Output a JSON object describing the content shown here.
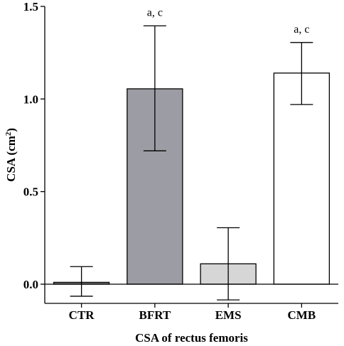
{
  "chart_data": {
    "type": "bar",
    "categories": [
      "CTR",
      "BFRT",
      "EMS",
      "CMB"
    ],
    "values": [
      0.01,
      1.055,
      0.11,
      1.14
    ],
    "error": [
      {
        "low": -0.065,
        "high": 0.095
      },
      {
        "low": 0.72,
        "high": 1.395
      },
      {
        "low": -0.085,
        "high": 0.305
      },
      {
        "low": 0.97,
        "high": 1.305
      }
    ],
    "colors": [
      "#808080",
      "#9c9ca4",
      "#d6d6d6",
      "#ffffff"
    ],
    "annotations": [
      "",
      "a, c",
      "",
      "a, c"
    ],
    "xlabel": "CSA of rectus femoris",
    "ylabel_main": "CSA (cm",
    "ylabel_sup": "2",
    "ylabel_end": ")",
    "ylim": [
      -0.1,
      1.5
    ],
    "yticks": [
      {
        "value": 0.0,
        "label": "0.0"
      },
      {
        "value": 0.5,
        "label": "0.5"
      },
      {
        "value": 1.0,
        "label": "1.0"
      },
      {
        "value": 1.5,
        "label": "1.5"
      }
    ],
    "grid": false,
    "legend": "none"
  }
}
